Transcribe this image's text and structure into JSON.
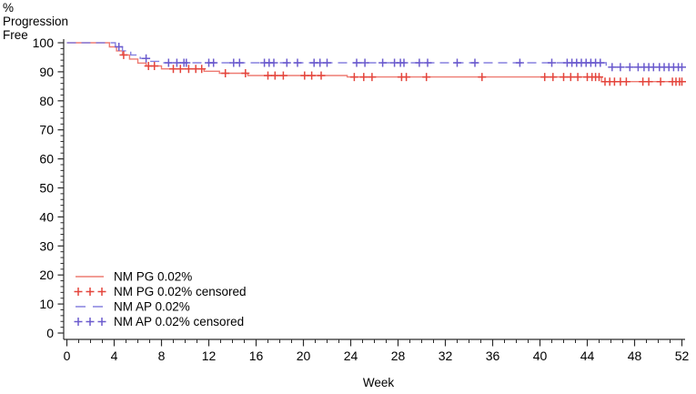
{
  "page": {
    "background_color": "#ffffff",
    "text_color": "#000000"
  },
  "chart_data": {
    "type": "line",
    "subtype": "kaplan-meier-step",
    "title": "",
    "xlabel": "Week",
    "ylabel_lines": [
      "%",
      "Progression",
      "Free"
    ],
    "xlim": [
      0,
      52
    ],
    "ylim": [
      0,
      100
    ],
    "x_major_ticks": [
      0,
      4,
      8,
      12,
      16,
      20,
      24,
      28,
      32,
      36,
      40,
      44,
      48,
      52
    ],
    "x_minor_step": 1,
    "y_major_ticks": [
      0,
      10,
      20,
      30,
      40,
      50,
      60,
      70,
      80,
      90,
      100
    ],
    "y_minor_step": 2,
    "grid": false,
    "axis_color": "#2b2b2b",
    "legend_position": "bottom-left-inside",
    "series": [
      {
        "name": "NM PG 0.02%",
        "color": "#EE7B72",
        "style": "solid",
        "points": [
          [
            0,
            100
          ],
          [
            3.6,
            100
          ],
          [
            3.6,
            98.6
          ],
          [
            4.2,
            98.6
          ],
          [
            4.2,
            97.2
          ],
          [
            4.7,
            97.2
          ],
          [
            4.7,
            95.8
          ],
          [
            5.3,
            95.8
          ],
          [
            5.3,
            94.4
          ],
          [
            6.0,
            94.4
          ],
          [
            6.0,
            93.0
          ],
          [
            6.7,
            93.0
          ],
          [
            6.7,
            92.0
          ],
          [
            8.0,
            92.0
          ],
          [
            8.0,
            91.0
          ],
          [
            11.6,
            91.0
          ],
          [
            11.6,
            90.2
          ],
          [
            12.9,
            90.2
          ],
          [
            12.9,
            89.5
          ],
          [
            15.3,
            89.5
          ],
          [
            15.3,
            88.7
          ],
          [
            23.7,
            88.7
          ],
          [
            23.7,
            88.2
          ],
          [
            45.2,
            88.2
          ],
          [
            45.2,
            86.6
          ],
          [
            52,
            86.6
          ]
        ]
      },
      {
        "name": "NM AP 0.02%",
        "color": "#8580DF",
        "style": "dashed",
        "points": [
          [
            0,
            100
          ],
          [
            4.1,
            100
          ],
          [
            4.1,
            98.6
          ],
          [
            4.7,
            98.6
          ],
          [
            4.7,
            97.2
          ],
          [
            5.4,
            97.2
          ],
          [
            5.4,
            95.8
          ],
          [
            6.2,
            95.8
          ],
          [
            6.2,
            94.6
          ],
          [
            7.0,
            94.6
          ],
          [
            7.0,
            93.6
          ],
          [
            8.2,
            93.6
          ],
          [
            8.2,
            93.1
          ],
          [
            45.6,
            93.1
          ],
          [
            45.6,
            91.6
          ],
          [
            52,
            91.6
          ]
        ]
      }
    ],
    "censored": [
      {
        "name": "NM PG 0.02% censored",
        "series_index": 0,
        "color": "#E4453C",
        "weeks": [
          4.8,
          6.9,
          7.4,
          9.0,
          9.6,
          10.3,
          10.9,
          11.4,
          13.4,
          15.1,
          17.0,
          17.6,
          18.3,
          20.1,
          20.7,
          21.5,
          24.3,
          25.1,
          25.8,
          28.3,
          28.7,
          30.4,
          35.1,
          40.4,
          41.1,
          42.0,
          42.6,
          43.2,
          44.0,
          44.4,
          44.7,
          45.0,
          45.5,
          45.9,
          46.3,
          46.8,
          47.3,
          48.7,
          49.2,
          50.2,
          51.2,
          51.5,
          51.8,
          52.0
        ]
      },
      {
        "name": "NM AP 0.02% censored",
        "series_index": 1,
        "color": "#6A5ACD",
        "weeks": [
          4.4,
          6.7,
          8.6,
          9.3,
          9.9,
          10.1,
          12.0,
          12.4,
          14.1,
          14.6,
          16.7,
          17.1,
          17.5,
          18.6,
          19.5,
          20.9,
          21.4,
          22.0,
          24.5,
          25.2,
          26.7,
          27.7,
          28.2,
          28.5,
          29.8,
          30.5,
          33.0,
          34.5,
          38.3,
          41.0,
          42.3,
          42.7,
          43.1,
          43.5,
          43.9,
          44.3,
          44.7,
          45.1,
          46.1,
          46.8,
          47.6,
          48.3,
          48.8,
          49.2,
          49.6,
          50.1,
          50.5,
          50.9,
          51.3,
          51.7,
          52.0
        ]
      }
    ],
    "legend": {
      "entries": [
        {
          "label": "NM PG 0.02%",
          "swatch": "line",
          "color": "#EE7B72"
        },
        {
          "label": "NM PG 0.02% censored",
          "swatch": "plus3",
          "color": "#E4453C"
        },
        {
          "label": "NM AP 0.02%",
          "swatch": "dash2",
          "color": "#8580DF"
        },
        {
          "label": "NM AP 0.02% censored",
          "swatch": "plus3",
          "color": "#6A5ACD"
        }
      ]
    }
  }
}
